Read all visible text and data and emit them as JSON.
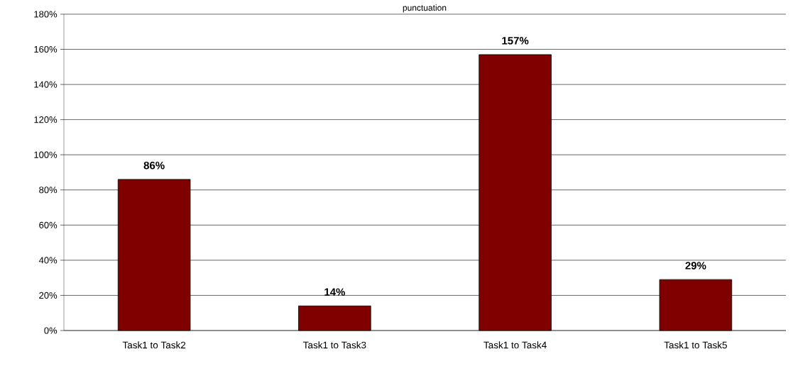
{
  "chart_data": {
    "type": "bar",
    "title": "punctuation",
    "categories": [
      "Task1 to Task2",
      "Task1 to Task3",
      "Task1 to Task4",
      "Task1 to Task5"
    ],
    "values": [
      86,
      14,
      157,
      29
    ],
    "value_labels": [
      "86%",
      "14%",
      "157%",
      "29%"
    ],
    "color": "#800000",
    "ylim": [
      0,
      180
    ],
    "yticks": [
      {
        "value": 0,
        "label": "0%"
      },
      {
        "value": 20,
        "label": "20%"
      },
      {
        "value": 40,
        "label": "40%"
      },
      {
        "value": 60,
        "label": "60%"
      },
      {
        "value": 80,
        "label": "80%"
      },
      {
        "value": 100,
        "label": "100%"
      },
      {
        "value": 120,
        "label": "120%"
      },
      {
        "value": 140,
        "label": "140%"
      },
      {
        "value": 160,
        "label": "160%"
      },
      {
        "value": 180,
        "label": "180%"
      }
    ],
    "grid": "y"
  }
}
